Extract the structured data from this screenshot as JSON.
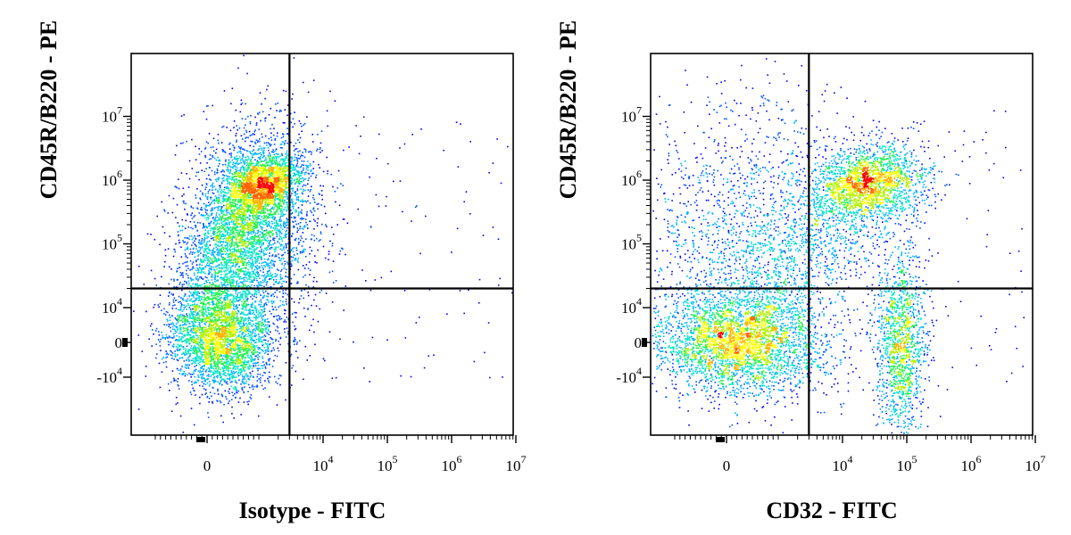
{
  "chart_data": [
    {
      "type": "scatter",
      "subtype": "flow-cytometry-density-dot-plot",
      "xlabel": "Isotype - FITC",
      "ylabel": "CD45R/B220 - PE",
      "x_scale": "biexponential",
      "y_scale": "biexponential",
      "x_ticks": [
        "0",
        "10^4",
        "10^5",
        "10^6",
        "10^7"
      ],
      "y_ticks": [
        "10^7",
        "10^6",
        "10^5",
        "10^4",
        "0",
        "-10^4"
      ],
      "quadrant_gate": {
        "x": 3000,
        "y": 20000
      },
      "populations": [
        {
          "name_on_chart": "",
          "center": {
            "x": 300,
            "y": 0
          },
          "relative_density": "high"
        },
        {
          "name_on_chart": "",
          "center": {
            "x": 1200,
            "y": 850000
          },
          "relative_density": "high"
        },
        {
          "name_on_chart": "",
          "center": {
            "x": 800,
            "y": 150000
          },
          "relative_density": "medium"
        }
      ],
      "colormap": [
        "#0000ff",
        "#00c8ff",
        "#00ff80",
        "#ffff00",
        "#ff8000",
        "#ff0000"
      ]
    },
    {
      "type": "scatter",
      "subtype": "flow-cytometry-density-dot-plot",
      "xlabel": "CD32 - FITC",
      "ylabel": "CD45R/B220 - PE",
      "x_scale": "biexponential",
      "y_scale": "biexponential",
      "x_ticks": [
        "0",
        "10^4",
        "10^5",
        "10^6",
        "10^7"
      ],
      "y_ticks": [
        "10^7",
        "10^6",
        "10^5",
        "10^4",
        "0",
        "-10^4"
      ],
      "quadrant_gate": {
        "x": 3000,
        "y": 20000
      },
      "populations": [
        {
          "name_on_chart": "",
          "center": {
            "x": 200,
            "y": 0
          },
          "relative_density": "high"
        },
        {
          "name_on_chart": "",
          "center": {
            "x": 25000,
            "y": 850000
          },
          "relative_density": "high"
        },
        {
          "name_on_chart": "",
          "center": {
            "x": 80000,
            "y": 0
          },
          "relative_density": "medium"
        },
        {
          "name_on_chart": "",
          "center": {
            "x": 500,
            "y": 100000
          },
          "relative_density": "low"
        }
      ],
      "colormap": [
        "#0000ff",
        "#00c8ff",
        "#00ff80",
        "#ffff00",
        "#ff8000",
        "#ff0000"
      ]
    }
  ]
}
